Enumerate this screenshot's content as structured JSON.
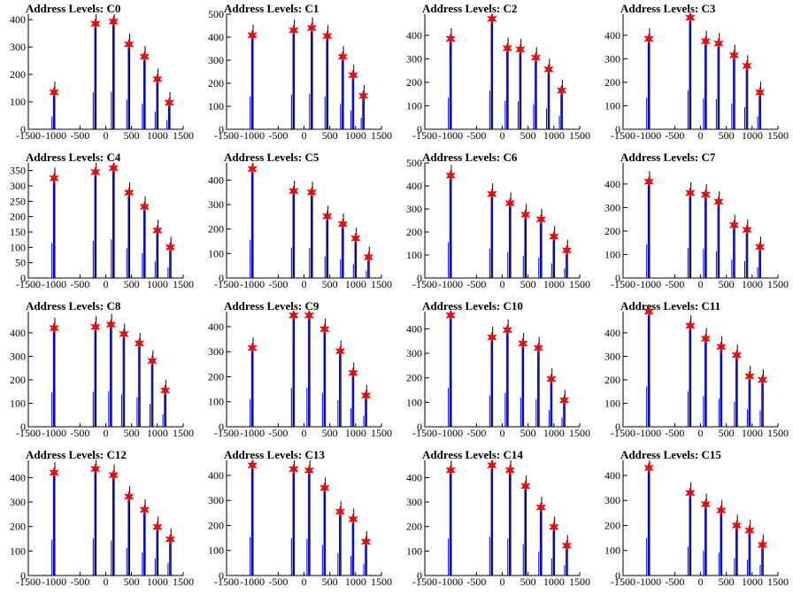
{
  "chart_data": [
    {
      "type": "bar",
      "title": "Address Levels: C0",
      "xlim": [
        -1500,
        1500
      ],
      "ylim": [
        0,
        420
      ],
      "xticks": [
        "-1500",
        "-1000",
        "-500",
        "0",
        "500",
        "1000",
        "1500"
      ],
      "yticks": [
        "0",
        "100",
        "200",
        "300",
        "400"
      ],
      "peaks": [
        {
          "x": -1000,
          "y": 135
        },
        {
          "x": -200,
          "y": 385
        },
        {
          "x": 150,
          "y": 393
        },
        {
          "x": 450,
          "y": 310
        },
        {
          "x": 750,
          "y": 265
        },
        {
          "x": 1000,
          "y": 183
        },
        {
          "x": 1230,
          "y": 97
        }
      ]
    },
    {
      "type": "bar",
      "title": "Address Levels: C1",
      "xlim": [
        -1500,
        1500
      ],
      "ylim": [
        0,
        500
      ],
      "xticks": [
        "-1500",
        "-1000",
        "-500",
        "0",
        "500",
        "1000",
        "1500"
      ],
      "yticks": [
        "0",
        "100",
        "200",
        "300",
        "400",
        "500"
      ],
      "peaks": [
        {
          "x": -1000,
          "y": 408
        },
        {
          "x": -200,
          "y": 430
        },
        {
          "x": 150,
          "y": 440
        },
        {
          "x": 450,
          "y": 405
        },
        {
          "x": 750,
          "y": 315
        },
        {
          "x": 950,
          "y": 235
        },
        {
          "x": 1150,
          "y": 145
        }
      ]
    },
    {
      "type": "bar",
      "title": "Address Levels: C2",
      "xlim": [
        -1500,
        1500
      ],
      "ylim": [
        0,
        490
      ],
      "xticks": [
        "-1500",
        "-1000",
        "-500",
        "0",
        "500",
        "1000",
        "1500"
      ],
      "yticks": [
        "0",
        "100",
        "200",
        "300",
        "400"
      ],
      "peaks": [
        {
          "x": -1000,
          "y": 385
        },
        {
          "x": -200,
          "y": 470
        },
        {
          "x": 100,
          "y": 345
        },
        {
          "x": 350,
          "y": 340
        },
        {
          "x": 650,
          "y": 305
        },
        {
          "x": 900,
          "y": 255
        },
        {
          "x": 1150,
          "y": 165
        }
      ]
    },
    {
      "type": "bar",
      "title": "Address Levels: C3",
      "xlim": [
        -1500,
        1500
      ],
      "ylim": [
        0,
        490
      ],
      "xticks": [
        "-1500",
        "-1000",
        "-500",
        "0",
        "500",
        "1000",
        "1500"
      ],
      "yticks": [
        "0",
        "100",
        "200",
        "300",
        "400"
      ],
      "peaks": [
        {
          "x": -1000,
          "y": 385
        },
        {
          "x": -200,
          "y": 475
        },
        {
          "x": 100,
          "y": 375
        },
        {
          "x": 350,
          "y": 365
        },
        {
          "x": 650,
          "y": 315
        },
        {
          "x": 900,
          "y": 270
        },
        {
          "x": 1150,
          "y": 157
        }
      ]
    },
    {
      "type": "bar",
      "title": "Address Levels: C4",
      "xlim": [
        -1500,
        1500
      ],
      "ylim": [
        0,
        375
      ],
      "xticks": [
        "-1500",
        "-1000",
        "-500",
        "0",
        "500",
        "1000",
        "1500"
      ],
      "yticks": [
        "0",
        "50",
        "100",
        "150",
        "200",
        "250",
        "300",
        "350"
      ],
      "peaks": [
        {
          "x": -1000,
          "y": 325
        },
        {
          "x": -200,
          "y": 345
        },
        {
          "x": 150,
          "y": 358
        },
        {
          "x": 450,
          "y": 278
        },
        {
          "x": 750,
          "y": 232
        },
        {
          "x": 1000,
          "y": 155
        },
        {
          "x": 1250,
          "y": 100
        }
      ]
    },
    {
      "type": "bar",
      "title": "Address Levels: C5",
      "xlim": [
        -1500,
        1500
      ],
      "ylim": [
        0,
        470
      ],
      "xticks": [
        "-1500",
        "-1000",
        "-500",
        "0",
        "500",
        "1000",
        "1500"
      ],
      "yticks": [
        "0",
        "100",
        "200",
        "300",
        "400"
      ],
      "peaks": [
        {
          "x": -1000,
          "y": 445
        },
        {
          "x": -200,
          "y": 355
        },
        {
          "x": 150,
          "y": 350
        },
        {
          "x": 450,
          "y": 252
        },
        {
          "x": 750,
          "y": 220
        },
        {
          "x": 1000,
          "y": 162
        },
        {
          "x": 1250,
          "y": 85
        }
      ]
    },
    {
      "type": "bar",
      "title": "Address Levels: C6",
      "xlim": [
        -1500,
        1500
      ],
      "ylim": [
        0,
        500
      ],
      "xticks": [
        "-1500",
        "-1000",
        "-500",
        "0",
        "500",
        "1000",
        "1500"
      ],
      "yticks": [
        "0",
        "100",
        "200",
        "300",
        "400",
        "500"
      ],
      "peaks": [
        {
          "x": -1000,
          "y": 445
        },
        {
          "x": -200,
          "y": 365
        },
        {
          "x": 150,
          "y": 325
        },
        {
          "x": 450,
          "y": 275
        },
        {
          "x": 750,
          "y": 255
        },
        {
          "x": 1000,
          "y": 180
        },
        {
          "x": 1250,
          "y": 120
        }
      ]
    },
    {
      "type": "bar",
      "title": "Address Levels: C7",
      "xlim": [
        -1500,
        1500
      ],
      "ylim": [
        0,
        490
      ],
      "xticks": [
        "-1500",
        "-1000",
        "-500",
        "0",
        "500",
        "1000",
        "1500"
      ],
      "yticks": [
        "0",
        "100",
        "200",
        "300",
        "400"
      ],
      "peaks": [
        {
          "x": -1000,
          "y": 410
        },
        {
          "x": -200,
          "y": 362
        },
        {
          "x": 100,
          "y": 355
        },
        {
          "x": 350,
          "y": 325
        },
        {
          "x": 650,
          "y": 225
        },
        {
          "x": 900,
          "y": 205
        },
        {
          "x": 1150,
          "y": 132
        }
      ]
    },
    {
      "type": "bar",
      "title": "Address Levels: C8",
      "xlim": [
        -1500,
        1500
      ],
      "ylim": [
        0,
        490
      ],
      "xticks": [
        "-1500",
        "-1000",
        "-500",
        "0",
        "500",
        "1000",
        "1500"
      ],
      "yticks": [
        "0",
        "100",
        "200",
        "300",
        "400"
      ],
      "peaks": [
        {
          "x": -1000,
          "y": 420
        },
        {
          "x": -200,
          "y": 425
        },
        {
          "x": 100,
          "y": 435
        },
        {
          "x": 350,
          "y": 395
        },
        {
          "x": 650,
          "y": 355
        },
        {
          "x": 900,
          "y": 280
        },
        {
          "x": 1150,
          "y": 155
        }
      ]
    },
    {
      "type": "bar",
      "title": "Address Levels: C9",
      "xlim": [
        -1500,
        1500
      ],
      "ylim": [
        0,
        460
      ],
      "xticks": [
        "-1500",
        "-1000",
        "-500",
        "0",
        "500",
        "1000",
        "1500"
      ],
      "yticks": [
        "0",
        "100",
        "200",
        "300",
        "400"
      ],
      "peaks": [
        {
          "x": -1000,
          "y": 315
        },
        {
          "x": -200,
          "y": 445
        },
        {
          "x": 100,
          "y": 445
        },
        {
          "x": 400,
          "y": 390
        },
        {
          "x": 700,
          "y": 302
        },
        {
          "x": 950,
          "y": 215
        },
        {
          "x": 1200,
          "y": 125
        }
      ]
    },
    {
      "type": "bar",
      "title": "Address Levels: C10",
      "xlim": [
        -1500,
        1500
      ],
      "ylim": [
        0,
        470
      ],
      "xticks": [
        "-1500",
        "-1000",
        "-500",
        "0",
        "500",
        "1000",
        "1500"
      ],
      "yticks": [
        "0",
        "100",
        "200",
        "300",
        "400"
      ],
      "peaks": [
        {
          "x": -1000,
          "y": 455
        },
        {
          "x": -200,
          "y": 365
        },
        {
          "x": 100,
          "y": 395
        },
        {
          "x": 400,
          "y": 340
        },
        {
          "x": 700,
          "y": 322
        },
        {
          "x": 950,
          "y": 195
        },
        {
          "x": 1200,
          "y": 108
        }
      ]
    },
    {
      "type": "bar",
      "title": "Address Levels: C11",
      "xlim": [
        -1500,
        1500
      ],
      "ylim": [
        0,
        490
      ],
      "xticks": [
        "-1500",
        "-1000",
        "-500",
        "0",
        "500",
        "1000",
        "1500"
      ],
      "yticks": [
        "0",
        "100",
        "200",
        "300",
        "400"
      ],
      "peaks": [
        {
          "x": -1000,
          "y": 490
        },
        {
          "x": -200,
          "y": 430
        },
        {
          "x": 100,
          "y": 375
        },
        {
          "x": 400,
          "y": 340
        },
        {
          "x": 700,
          "y": 305
        },
        {
          "x": 950,
          "y": 215
        },
        {
          "x": 1200,
          "y": 200
        }
      ]
    },
    {
      "type": "bar",
      "title": "Address Levels: C12",
      "xlim": [
        -1500,
        1500
      ],
      "ylim": [
        0,
        470
      ],
      "xticks": [
        "-1500",
        "-1000",
        "-500",
        "0",
        "500",
        "1000",
        "1500"
      ],
      "yticks": [
        "0",
        "100",
        "200",
        "300",
        "400"
      ],
      "peaks": [
        {
          "x": -1000,
          "y": 420
        },
        {
          "x": -200,
          "y": 435
        },
        {
          "x": 150,
          "y": 410
        },
        {
          "x": 450,
          "y": 322
        },
        {
          "x": 750,
          "y": 268
        },
        {
          "x": 1000,
          "y": 198
        },
        {
          "x": 1250,
          "y": 148
        }
      ]
    },
    {
      "type": "bar",
      "title": "Address Levels: C13",
      "xlim": [
        -1500,
        1500
      ],
      "ylim": [
        0,
        460
      ],
      "xticks": [
        "-1500",
        "-1000",
        "-500",
        "0",
        "500",
        "1000",
        "1500"
      ],
      "yticks": [
        "0",
        "100",
        "200",
        "300",
        "400"
      ],
      "peaks": [
        {
          "x": -1000,
          "y": 440
        },
        {
          "x": -200,
          "y": 425
        },
        {
          "x": 100,
          "y": 420
        },
        {
          "x": 400,
          "y": 350
        },
        {
          "x": 700,
          "y": 255
        },
        {
          "x": 950,
          "y": 225
        },
        {
          "x": 1200,
          "y": 135
        }
      ]
    },
    {
      "type": "bar",
      "title": "Address Levels: C14",
      "xlim": [
        -1500,
        1500
      ],
      "ylim": [
        0,
        470
      ],
      "xticks": [
        "-1500",
        "-1000",
        "-500",
        "0",
        "500",
        "1000",
        "1500"
      ],
      "yticks": [
        "0",
        "100",
        "200",
        "300",
        "400"
      ],
      "peaks": [
        {
          "x": -1000,
          "y": 430
        },
        {
          "x": -200,
          "y": 450
        },
        {
          "x": 150,
          "y": 430
        },
        {
          "x": 450,
          "y": 365
        },
        {
          "x": 750,
          "y": 278
        },
        {
          "x": 1000,
          "y": 198
        },
        {
          "x": 1250,
          "y": 122
        }
      ]
    },
    {
      "type": "bar",
      "title": "Address Levels: C15",
      "xlim": [
        -1500,
        1500
      ],
      "ylim": [
        0,
        460
      ],
      "xticks": [
        "-1500",
        "-1000",
        "-500",
        "0",
        "500",
        "1000",
        "1500"
      ],
      "yticks": [
        "0",
        "100",
        "200",
        "300",
        "400"
      ],
      "peaks": [
        {
          "x": -1000,
          "y": 430
        },
        {
          "x": -200,
          "y": 330
        },
        {
          "x": 100,
          "y": 285
        },
        {
          "x": 400,
          "y": 260
        },
        {
          "x": 700,
          "y": 200
        },
        {
          "x": 950,
          "y": 180
        },
        {
          "x": 1200,
          "y": 122
        }
      ]
    }
  ]
}
